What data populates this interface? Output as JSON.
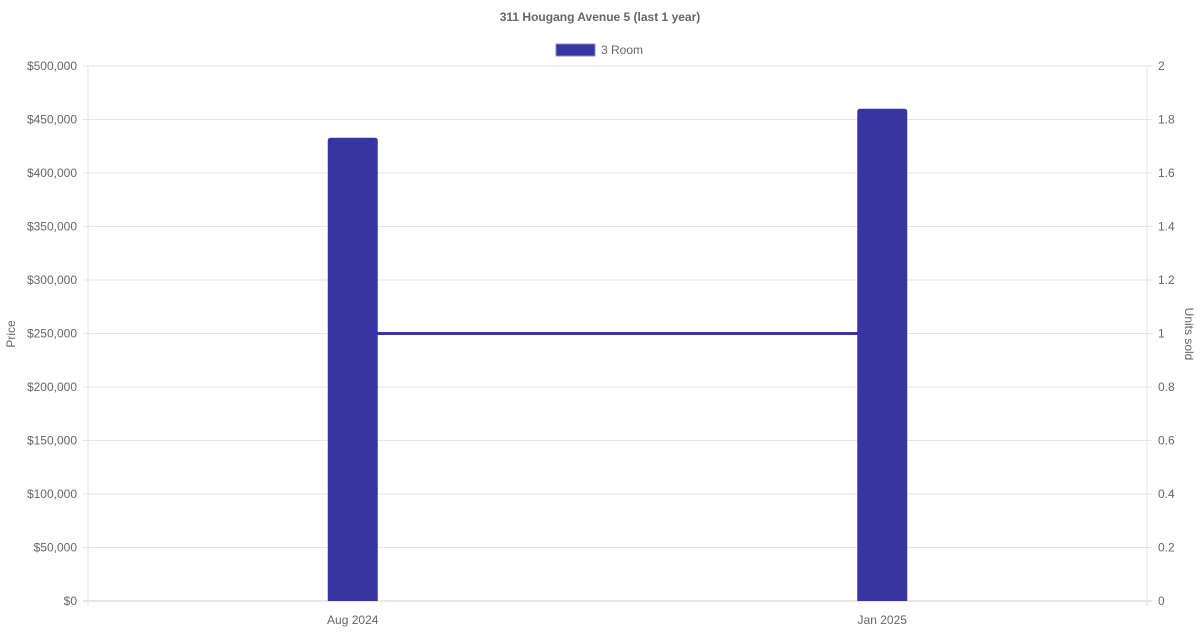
{
  "chart_data": {
    "type": "bar",
    "title": "311 Hougang Avenue 5 (last 1 year)",
    "categories": [
      "Aug 2024",
      "Jan 2025"
    ],
    "series": [
      {
        "name": "3 Room",
        "type": "bar",
        "axis": "left",
        "values": [
          433000,
          460000
        ],
        "color": "#3835a0"
      },
      {
        "type": "line",
        "axis": "right",
        "values": [
          1,
          1
        ],
        "color": "#3835a0"
      }
    ],
    "ylabel": "Price",
    "y2label": "Units sold",
    "ylim": [
      0,
      500000
    ],
    "y2lim": [
      0,
      2
    ],
    "yticks": [
      "$0",
      "$50,000",
      "$100,000",
      "$150,000",
      "$200,000",
      "$250,000",
      "$300,000",
      "$350,000",
      "$400,000",
      "$450,000",
      "$500,000"
    ],
    "y2ticks": [
      "0",
      "0.2",
      "0.4",
      "0.6",
      "0.8",
      "1",
      "1.2",
      "1.4",
      "1.6",
      "1.8",
      "2"
    ],
    "grid": true,
    "legend": "top"
  }
}
